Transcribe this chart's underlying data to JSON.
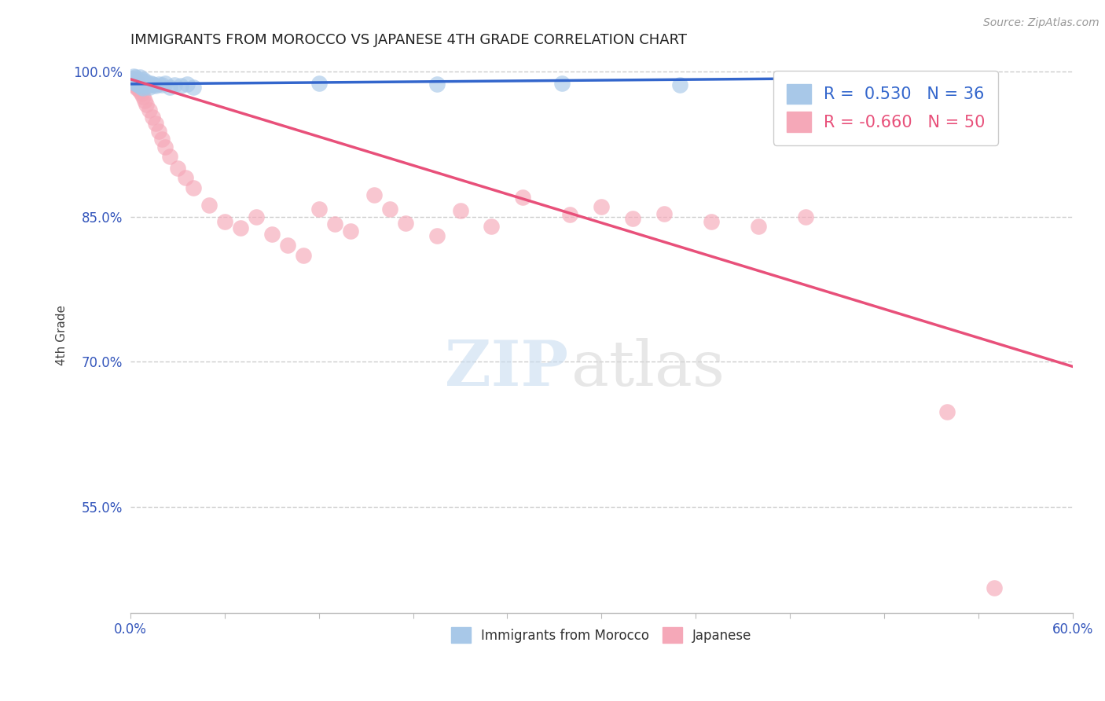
{
  "title": "IMMIGRANTS FROM MOROCCO VS JAPANESE 4TH GRADE CORRELATION CHART",
  "source_text": "Source: ZipAtlas.com",
  "ylabel": "4th Grade",
  "xlim": [
    0.0,
    0.6
  ],
  "ylim": [
    0.44,
    1.015
  ],
  "xticks": [
    0.0,
    0.06,
    0.12,
    0.18,
    0.24,
    0.3,
    0.36,
    0.42,
    0.48,
    0.54,
    0.6
  ],
  "ytick_positions": [
    0.55,
    0.7,
    0.85,
    1.0
  ],
  "yticklabels": [
    "55.0%",
    "70.0%",
    "85.0%",
    "100.0%"
  ],
  "grid_lines": [
    1.0,
    0.85,
    0.7,
    0.55
  ],
  "r_blue": 0.53,
  "n_blue": 36,
  "r_pink": -0.66,
  "n_pink": 50,
  "blue_color": "#a8c8e8",
  "pink_color": "#f5a8b8",
  "blue_line_color": "#3366cc",
  "pink_line_color": "#e8507a",
  "blue_scatter_x": [
    0.001,
    0.002,
    0.002,
    0.003,
    0.003,
    0.004,
    0.004,
    0.005,
    0.005,
    0.006,
    0.006,
    0.007,
    0.007,
    0.008,
    0.008,
    0.009,
    0.01,
    0.011,
    0.012,
    0.013,
    0.014,
    0.015,
    0.016,
    0.018,
    0.02,
    0.022,
    0.025,
    0.028,
    0.032,
    0.036,
    0.04,
    0.12,
    0.195,
    0.275,
    0.35,
    0.42
  ],
  "blue_scatter_y": [
    0.993,
    0.99,
    0.995,
    0.988,
    0.994,
    0.987,
    0.992,
    0.986,
    0.991,
    0.985,
    0.994,
    0.984,
    0.991,
    0.983,
    0.992,
    0.986,
    0.989,
    0.985,
    0.984,
    0.988,
    0.987,
    0.986,
    0.985,
    0.987,
    0.986,
    0.988,
    0.984,
    0.986,
    0.985,
    0.987,
    0.984,
    0.988,
    0.987,
    0.988,
    0.986,
    0.989
  ],
  "pink_scatter_x": [
    0.001,
    0.002,
    0.002,
    0.003,
    0.003,
    0.004,
    0.004,
    0.005,
    0.005,
    0.006,
    0.007,
    0.008,
    0.009,
    0.01,
    0.012,
    0.014,
    0.016,
    0.018,
    0.02,
    0.022,
    0.025,
    0.03,
    0.035,
    0.04,
    0.05,
    0.06,
    0.07,
    0.08,
    0.09,
    0.1,
    0.11,
    0.12,
    0.13,
    0.14,
    0.155,
    0.165,
    0.175,
    0.195,
    0.21,
    0.23,
    0.25,
    0.28,
    0.3,
    0.32,
    0.34,
    0.37,
    0.4,
    0.43,
    0.52,
    0.55
  ],
  "pink_scatter_y": [
    0.99,
    0.988,
    0.993,
    0.985,
    0.991,
    0.983,
    0.989,
    0.982,
    0.988,
    0.98,
    0.977,
    0.974,
    0.97,
    0.966,
    0.96,
    0.953,
    0.946,
    0.938,
    0.93,
    0.922,
    0.912,
    0.9,
    0.89,
    0.88,
    0.862,
    0.845,
    0.838,
    0.85,
    0.832,
    0.82,
    0.81,
    0.858,
    0.842,
    0.835,
    0.872,
    0.858,
    0.843,
    0.83,
    0.856,
    0.84,
    0.87,
    0.852,
    0.86,
    0.848,
    0.853,
    0.845,
    0.84,
    0.85,
    0.648,
    0.466
  ],
  "blue_trend_x": [
    0.0,
    0.42
  ],
  "blue_trend_y": [
    0.987,
    0.9925
  ],
  "pink_trend_x": [
    0.0,
    0.6
  ],
  "pink_trend_y": [
    0.992,
    0.695
  ]
}
